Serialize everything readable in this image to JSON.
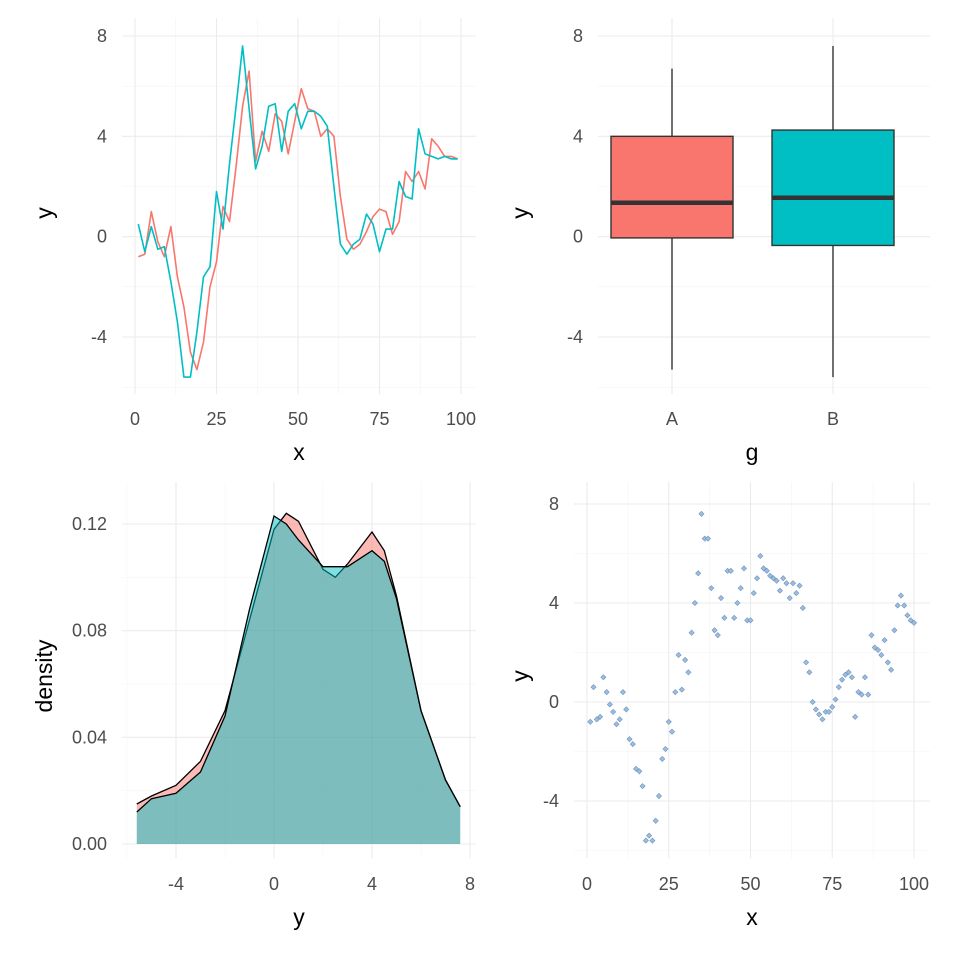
{
  "colors": {
    "series_A": "#F8766D",
    "series_B": "#00BFC4",
    "box_outline": "#333333",
    "scatter_point": "#9DBDE0",
    "scatter_point_edge": "#6f93bd"
  },
  "chart_data": [
    {
      "type": "line",
      "xlabel": "x",
      "ylabel": "y",
      "xlim": [
        0,
        100
      ],
      "ylim": [
        -6,
        8
      ],
      "xticks": [
        "0",
        "25",
        "50",
        "75",
        "100"
      ],
      "yticks": [
        "-4",
        "0",
        "4",
        "8"
      ],
      "grid": true,
      "legend": "none",
      "series": [
        {
          "x": [
            1,
            3,
            5,
            7,
            9,
            11,
            13,
            15,
            17,
            19,
            21,
            23,
            25,
            27,
            29,
            31,
            33,
            35,
            37,
            39,
            41,
            43,
            45,
            47,
            49,
            51,
            53,
            55,
            57,
            59,
            61,
            63,
            65,
            67,
            69,
            71,
            73,
            75,
            77,
            79,
            81,
            83,
            85,
            87,
            89,
            91,
            93,
            95,
            97,
            99
          ],
          "values": [
            -0.8,
            -0.7,
            1.0,
            -0.2,
            -0.8,
            0.4,
            -1.6,
            -2.8,
            -4.6,
            -5.3,
            -4.2,
            -2.0,
            -1.0,
            1.2,
            0.6,
            2.8,
            5.2,
            6.6,
            3.0,
            4.2,
            3.4,
            4.9,
            4.6,
            3.3,
            4.6,
            5.9,
            5.1,
            5.0,
            4.0,
            4.3,
            4.0,
            1.6,
            -0.1,
            -0.5,
            -0.3,
            0.2,
            0.8,
            1.1,
            1.0,
            0.1,
            0.6,
            2.6,
            2.2,
            2.6,
            1.9,
            3.9,
            3.6,
            3.2,
            3.2,
            3.1
          ]
        },
        {
          "x": [
            1,
            3,
            5,
            7,
            9,
            11,
            13,
            15,
            17,
            19,
            21,
            23,
            25,
            27,
            29,
            31,
            33,
            35,
            37,
            39,
            41,
            43,
            45,
            47,
            49,
            51,
            53,
            55,
            57,
            59,
            61,
            63,
            65,
            67,
            69,
            71,
            73,
            75,
            77,
            79,
            81,
            83,
            85,
            87,
            89,
            91,
            93,
            95,
            97,
            99
          ],
          "values": [
            0.5,
            -0.6,
            0.4,
            -0.5,
            -0.4,
            -1.8,
            -3.4,
            -5.6,
            -5.6,
            -3.8,
            -1.6,
            -1.2,
            1.8,
            0.3,
            2.9,
            5.2,
            7.6,
            5.1,
            2.7,
            3.6,
            5.2,
            5.3,
            3.4,
            5.0,
            5.3,
            4.3,
            5.0,
            5.0,
            4.8,
            4.4,
            2.0,
            -0.3,
            -0.7,
            -0.3,
            -0.1,
            0.9,
            0.5,
            -0.6,
            0.3,
            0.3,
            2.2,
            1.6,
            1.5,
            4.3,
            3.3,
            3.2,
            3.1,
            3.2,
            3.1,
            3.1
          ]
        }
      ]
    },
    {
      "type": "box",
      "xlabel": "g",
      "ylabel": "y",
      "ylim": [
        -6,
        8
      ],
      "yticks": [
        "-4",
        "0",
        "4",
        "8"
      ],
      "categories": [
        "A",
        "B"
      ],
      "grid": true,
      "legend": "none",
      "boxes": [
        {
          "name": "A",
          "min": -5.3,
          "q1": -0.05,
          "median": 1.35,
          "q3": 4.0,
          "max": 6.7
        },
        {
          "name": "B",
          "min": -5.6,
          "q1": -0.35,
          "median": 1.55,
          "q3": 4.25,
          "max": 7.6
        }
      ]
    },
    {
      "type": "area",
      "xlabel": "y",
      "ylabel": "density",
      "xlim": [
        -6,
        8
      ],
      "ylim": [
        0,
        0.13
      ],
      "xticks": [
        "-4",
        "0",
        "4",
        "8"
      ],
      "yticks": [
        "0.00",
        "0.04",
        "0.08",
        "0.12"
      ],
      "grid": true,
      "legend": "none",
      "series": [
        {
          "x": [
            -5.6,
            -5,
            -4,
            -3,
            -2,
            -1,
            0,
            0.5,
            1,
            2,
            2.5,
            3,
            4,
            4.5,
            5,
            6,
            7,
            7.6
          ],
          "values": [
            0.015,
            0.018,
            0.022,
            0.031,
            0.05,
            0.084,
            0.118,
            0.124,
            0.121,
            0.103,
            0.1,
            0.105,
            0.117,
            0.11,
            0.093,
            0.05,
            0.024,
            0.014
          ]
        },
        {
          "x": [
            -5.6,
            -5,
            -4,
            -3,
            -2,
            -1,
            0,
            0.5,
            1,
            2,
            3,
            4,
            4.5,
            5,
            6,
            7,
            7.6
          ],
          "values": [
            0.012,
            0.017,
            0.019,
            0.027,
            0.048,
            0.088,
            0.123,
            0.12,
            0.114,
            0.104,
            0.104,
            0.11,
            0.106,
            0.092,
            0.05,
            0.024,
            0.014
          ]
        }
      ]
    },
    {
      "type": "scatter",
      "xlabel": "x",
      "ylabel": "y",
      "xlim": [
        0,
        100
      ],
      "ylim": [
        -6,
        8
      ],
      "xticks": [
        "0",
        "25",
        "50",
        "75",
        "100"
      ],
      "yticks": [
        "-4",
        "0",
        "4",
        "8"
      ],
      "grid": true,
      "legend": "none",
      "points": {
        "x": [
          1,
          2,
          3,
          4,
          5,
          6,
          7,
          8,
          9,
          10,
          11,
          12,
          13,
          14,
          15,
          16,
          17,
          18,
          19,
          20,
          21,
          22,
          23,
          24,
          25,
          26,
          27,
          28,
          29,
          30,
          31,
          32,
          33,
          34,
          35,
          36,
          37,
          38,
          39,
          40,
          41,
          42,
          43,
          44,
          45,
          46,
          47,
          48,
          49,
          50,
          51,
          52,
          53,
          54,
          55,
          56,
          57,
          58,
          59,
          60,
          61,
          62,
          63,
          64,
          65,
          66,
          67,
          68,
          69,
          70,
          71,
          72,
          73,
          74,
          75,
          76,
          77,
          78,
          79,
          80,
          81,
          82,
          83,
          84,
          85,
          86,
          87,
          88,
          89,
          90,
          91,
          92,
          93,
          94,
          95,
          96,
          97,
          98,
          99,
          100
        ],
        "y": [
          -0.8,
          0.6,
          -0.7,
          -0.6,
          1.0,
          0.4,
          -0.1,
          -0.4,
          -0.9,
          -0.7,
          0.4,
          -0.3,
          -1.5,
          -1.7,
          -2.7,
          -2.8,
          -3.4,
          -5.6,
          -5.4,
          -5.6,
          -4.8,
          -3.8,
          -2.3,
          -1.9,
          -0.8,
          -1.2,
          0.4,
          1.9,
          0.5,
          1.7,
          1.2,
          2.8,
          4.0,
          5.2,
          7.6,
          6.6,
          6.6,
          4.6,
          2.9,
          2.7,
          4.2,
          3.4,
          5.3,
          5.3,
          3.4,
          4.0,
          4.6,
          5.4,
          3.3,
          3.3,
          4.4,
          5.0,
          5.9,
          5.4,
          5.3,
          5.1,
          5.0,
          4.9,
          4.5,
          5.0,
          4.8,
          4.2,
          4.8,
          4.4,
          4.7,
          3.8,
          1.6,
          1.2,
          0.0,
          -0.3,
          -0.5,
          -0.7,
          -0.4,
          -0.4,
          -0.2,
          0.1,
          0.6,
          0.9,
          1.1,
          1.2,
          1.0,
          -0.6,
          0.4,
          0.3,
          1.0,
          0.3,
          2.7,
          2.2,
          2.1,
          1.9,
          2.5,
          1.6,
          1.3,
          2.9,
          3.9,
          4.3,
          3.9,
          3.5,
          3.3,
          3.2
        ]
      }
    }
  ]
}
